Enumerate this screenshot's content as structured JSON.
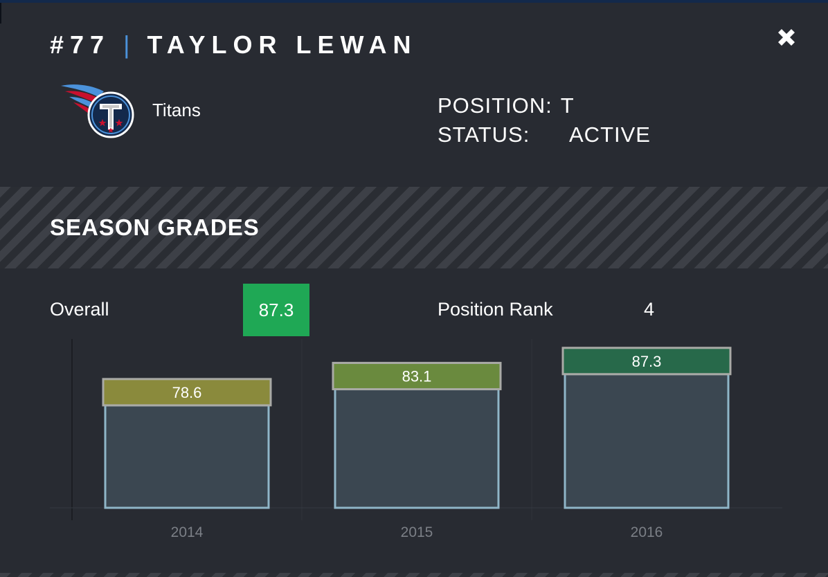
{
  "header": {
    "number": "#77",
    "divider": "|",
    "player_name": "TAYLOR LEWAN"
  },
  "team": {
    "name": "Titans",
    "logo_icon": "titans-logo-icon"
  },
  "info": {
    "position_label": "POSITION:",
    "position_value": "T",
    "status_label": "STATUS:",
    "status_value": "ACTIVE"
  },
  "section": {
    "title": "SEASON GRADES"
  },
  "summary": {
    "overall_label": "Overall",
    "overall_value": "87.3",
    "rank_label": "Position Rank",
    "rank_value": "4"
  },
  "colors": {
    "background": "#282b32",
    "overall_badge": "#1fa855",
    "grade_2014": "#8a8a3c",
    "grade_2015": "#6a8a3e",
    "grade_2016": "#27694a",
    "bar_fill": "#3b4751",
    "bar_border": "#8fb6c8"
  },
  "chart_data": {
    "type": "bar",
    "categories": [
      "2014",
      "2015",
      "2016"
    ],
    "values": [
      78.6,
      83.1,
      87.3
    ],
    "value_labels": [
      "78.6",
      "83.1",
      "87.3"
    ],
    "title": "",
    "xlabel": "",
    "ylabel": "",
    "ylim": [
      0,
      100
    ],
    "grid": false
  }
}
